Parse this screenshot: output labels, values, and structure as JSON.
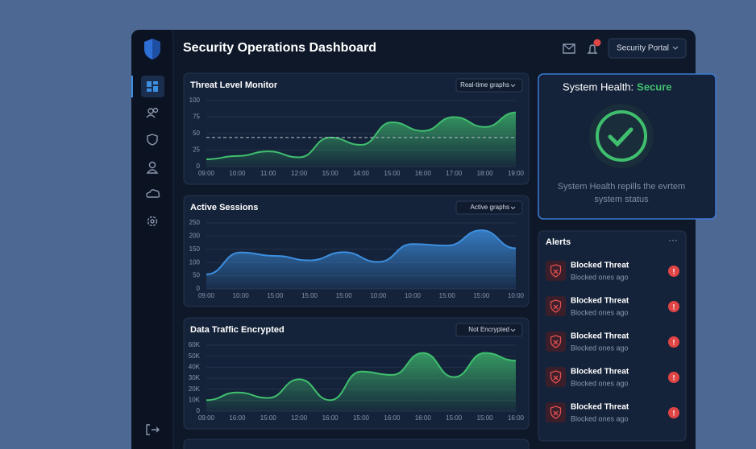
{
  "header": {
    "title": "Security Operations Dashboard",
    "portal": "Security Portal"
  },
  "chart_data": [
    {
      "type": "area",
      "title": "Threat Level Monitor",
      "dropdown": "Real-time graphs",
      "color": "#3fbf6e",
      "categories": [
        "09:00",
        "10:00",
        "11:00",
        "12:00",
        "15:00",
        "14:00",
        "15:00",
        "16:00",
        "17:00",
        "18:00",
        "19:00"
      ],
      "values": [
        11,
        16,
        23,
        14,
        44,
        33,
        67,
        54,
        75,
        60,
        82
      ],
      "threshold": 44,
      "ylim": [
        0,
        100
      ],
      "yticks": [
        0,
        25,
        50,
        75,
        100
      ],
      "grid": true
    },
    {
      "type": "area",
      "title": "Active Sessions",
      "dropdown": "Active graphs",
      "color": "#3d8fe0",
      "categories": [
        "09:00",
        "10:00",
        "15:00",
        "15:00",
        "15:00",
        "10:00",
        "10:00",
        "15:00",
        "15:00",
        "10:00"
      ],
      "values": [
        55,
        138,
        125,
        108,
        139,
        102,
        170,
        164,
        222,
        154
      ],
      "ylim": [
        0,
        250
      ],
      "yticks": [
        0,
        50,
        100,
        150,
        200,
        250
      ],
      "grid": true
    },
    {
      "type": "area",
      "title": "Data Traffic Encrypted",
      "dropdown": "Not Encrypted",
      "color": "#3fbf6e",
      "categories": [
        "09:00",
        "16:00",
        "15:00",
        "12:00",
        "16:00",
        "15:00",
        "16:00",
        "16:00",
        "15:00",
        "15:00",
        "16:00"
      ],
      "values": [
        10000,
        17000,
        12000,
        29000,
        10000,
        36000,
        33000,
        53000,
        31000,
        53000,
        46000
      ],
      "ylim": [
        0,
        60000
      ],
      "yticks": [
        0,
        {
          "value": 10000,
          "label": "10K"
        },
        {
          "value": 20000,
          "label": "20K"
        },
        {
          "value": 30000,
          "label": "30K"
        },
        {
          "value": 40000,
          "label": "40K"
        },
        {
          "value": 50000,
          "label": "50K"
        },
        {
          "value": 60000,
          "label": "60K"
        }
      ],
      "grid": true
    }
  ],
  "health": {
    "label": "System Health:",
    "status": "Secure",
    "text_lines": [
      "System Health repills the evrtem",
      "system status"
    ]
  },
  "alerts": {
    "title": "Alerts",
    "items": [
      {
        "title": "Blocked Threat",
        "subtitle": "Blocked ones ago"
      },
      {
        "title": "Blocked Threat",
        "subtitle": "Blocked ones ago"
      },
      {
        "title": "Blocked Threat",
        "subtitle": "Blocked ones ago"
      },
      {
        "title": "Blocked Threat",
        "subtitle": "Blocked ones ago"
      },
      {
        "title": "Blocked Threat",
        "subtitle": "Blocked ones ago"
      }
    ]
  }
}
